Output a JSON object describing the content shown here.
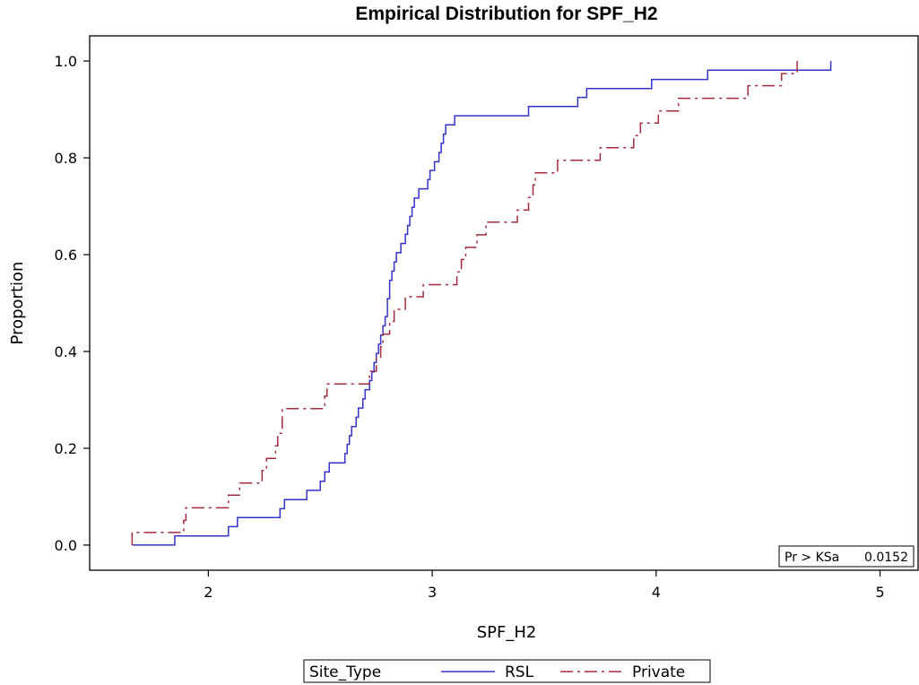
{
  "chart_data": {
    "type": "line",
    "title": "Empirical Distribution for SPF_H2",
    "xlabel": "SPF_H2",
    "ylabel": "Proportion",
    "xlim": [
      1.47,
      5.17
    ],
    "ylim": [
      -0.052,
      1.052
    ],
    "xticks": [
      2,
      3,
      4,
      5
    ],
    "yticks": [
      0.0,
      0.2,
      0.4,
      0.6,
      0.8,
      1.0
    ],
    "xtick_labels": [
      "2",
      "3",
      "4",
      "5"
    ],
    "ytick_labels": [
      "0.0",
      "0.2",
      "0.4",
      "0.6",
      "0.8",
      "1.0"
    ],
    "grid": false,
    "legend": {
      "placement": "bottom",
      "title": "Site_Type",
      "entries": [
        "RSL",
        "Private"
      ]
    },
    "annotation": {
      "label": "Pr > KSa",
      "value": "0.0152"
    },
    "colors": {
      "RSL": "#3333cc",
      "Private": "#a52a3a"
    },
    "series": [
      {
        "name": "RSL",
        "style": "solid",
        "x": [
          1.66,
          1.85,
          2.09,
          2.13,
          2.32,
          2.34,
          2.44,
          2.5,
          2.52,
          2.54,
          2.61,
          2.62,
          2.63,
          2.64,
          2.66,
          2.67,
          2.69,
          2.7,
          2.72,
          2.73,
          2.74,
          2.75,
          2.76,
          2.77,
          2.78,
          2.79,
          2.8,
          2.8,
          2.81,
          2.81,
          2.82,
          2.83,
          2.84,
          2.86,
          2.88,
          2.89,
          2.9,
          2.91,
          2.92,
          2.94,
          2.98,
          2.99,
          3.01,
          3.03,
          3.04,
          3.05,
          3.06,
          3.08,
          3.1,
          3.16,
          3.43,
          3.65,
          3.69,
          3.98,
          4.23,
          4.78
        ],
        "y": [
          0.0,
          0.019,
          0.038,
          0.057,
          0.075,
          0.094,
          0.113,
          0.132,
          0.151,
          0.17,
          0.189,
          0.208,
          0.226,
          0.245,
          0.264,
          0.283,
          0.302,
          0.321,
          0.34,
          0.358,
          0.377,
          0.396,
          0.415,
          0.434,
          0.453,
          0.472,
          0.491,
          0.509,
          0.528,
          0.547,
          0.566,
          0.585,
          0.604,
          0.623,
          0.642,
          0.66,
          0.679,
          0.698,
          0.717,
          0.736,
          0.755,
          0.774,
          0.792,
          0.811,
          0.83,
          0.849,
          0.868,
          0.868,
          0.887,
          0.887,
          0.906,
          0.925,
          0.943,
          0.962,
          0.981,
          1.0
        ]
      },
      {
        "name": "Private",
        "style": "dashed",
        "x": [
          1.66,
          1.89,
          1.9,
          2.09,
          2.14,
          2.24,
          2.26,
          2.3,
          2.31,
          2.33,
          2.52,
          2.53,
          2.72,
          2.75,
          2.77,
          2.78,
          2.81,
          2.83,
          2.85,
          2.88,
          2.94,
          2.96,
          3.0,
          3.11,
          3.13,
          3.15,
          3.2,
          3.24,
          3.26,
          3.38,
          3.43,
          3.45,
          3.46,
          3.56,
          3.75,
          3.79,
          3.9,
          3.93,
          3.99,
          4.01,
          4.1,
          4.22,
          4.41,
          4.5,
          4.56,
          4.63
        ],
        "y": [
          0.026,
          0.051,
          0.077,
          0.103,
          0.128,
          0.154,
          0.179,
          0.205,
          0.231,
          0.282,
          0.308,
          0.333,
          0.359,
          0.385,
          0.41,
          0.436,
          0.462,
          0.487,
          0.487,
          0.513,
          0.513,
          0.538,
          0.538,
          0.564,
          0.59,
          0.615,
          0.641,
          0.667,
          0.667,
          0.692,
          0.718,
          0.744,
          0.769,
          0.795,
          0.821,
          0.821,
          0.846,
          0.872,
          0.872,
          0.897,
          0.923,
          0.923,
          0.949,
          0.949,
          0.974,
          1.0
        ]
      }
    ]
  }
}
